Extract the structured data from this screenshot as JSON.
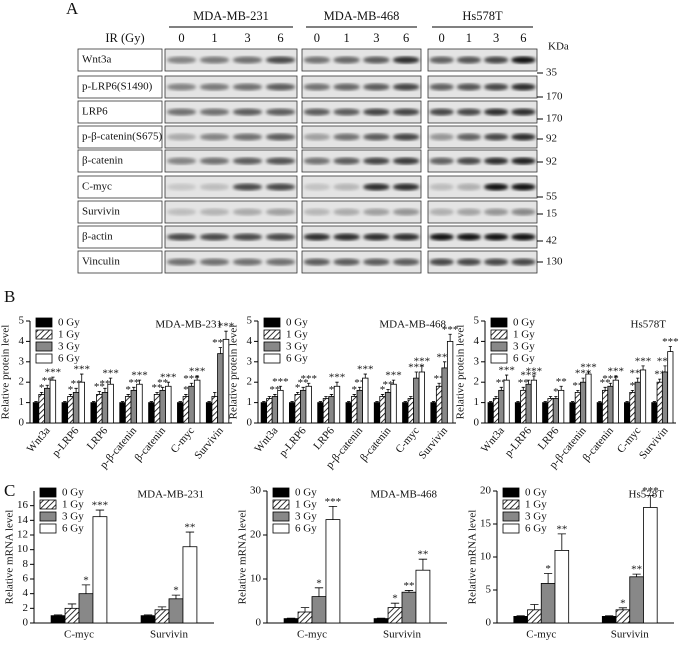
{
  "panel_labels": [
    "A",
    "B",
    "C"
  ],
  "blot": {
    "cell_lines": [
      "MDA-MB-231",
      "MDA-MB-468",
      "Hs578T"
    ],
    "dose_label": "IR (Gy)",
    "doses": [
      "0",
      "1",
      "3",
      "6"
    ],
    "proteins": [
      "Wnt3a",
      "p-LRP6(S1490)",
      "LRP6",
      "p-β-catenin(S675)",
      "β-catenin",
      "C-myc",
      "Survivin",
      "β-actin",
      "Vinculin"
    ],
    "kda_header": "KDa",
    "kda": [
      "35",
      "170",
      "170",
      "92",
      "92",
      "55",
      "15",
      "42",
      "130"
    ]
  },
  "chart_data": [
    {
      "type": "bar",
      "title": "MDA-MB-231",
      "ylabel": "Relative protein level",
      "rotate_labels": true,
      "legend": "upper left",
      "categories": [
        "Wnt3a",
        "p-LRP6",
        "LRP6",
        "p-β-catenin",
        "β-catenin",
        "C-myc",
        "Survivin"
      ],
      "ylim": [
        0,
        5
      ],
      "yticks": [
        0,
        1,
        2,
        3,
        4,
        5
      ],
      "series": [
        {
          "name": "0 Gy",
          "color": "#000000",
          "values": [
            1,
            1,
            1,
            1,
            1,
            1,
            1
          ],
          "errors": [
            0.05,
            0.05,
            0.05,
            0.05,
            0.05,
            0.05,
            0.05
          ],
          "sig": [
            null,
            null,
            null,
            null,
            null,
            null,
            null
          ]
        },
        {
          "name": "1 Gy",
          "color": "#ffffff",
          "hatch": true,
          "values": [
            1.4,
            1.3,
            1.4,
            1.3,
            1.4,
            1.3,
            1.3
          ],
          "errors": [
            0.1,
            0.1,
            0.15,
            0.1,
            0.1,
            0.1,
            0.2
          ],
          "sig": [
            "*",
            "*",
            "**",
            "*",
            "**",
            "*",
            null
          ]
        },
        {
          "name": "3 Gy",
          "color": "#888888",
          "values": [
            1.7,
            1.5,
            1.5,
            1.6,
            1.6,
            1.8,
            3.4
          ],
          "errors": [
            0.15,
            0.2,
            0.2,
            0.15,
            0.15,
            0.15,
            0.3
          ],
          "sig": [
            "**",
            "**",
            "**",
            "**",
            "**",
            "***",
            "***"
          ]
        },
        {
          "name": "6 Gy",
          "color": "#ffffff",
          "values": [
            2.1,
            2.0,
            1.9,
            1.9,
            1.8,
            2.1,
            4.1
          ],
          "errors": [
            0.15,
            0.4,
            0.3,
            0.2,
            0.2,
            0.2,
            0.4
          ],
          "sig": [
            "***",
            "***",
            "***",
            "***",
            "***",
            "***",
            "***"
          ]
        }
      ]
    },
    {
      "type": "bar",
      "title": "MDA-MB-468",
      "ylabel": "Relative protein level",
      "rotate_labels": true,
      "legend": "upper left",
      "categories": [
        "Wnt3a",
        "p-LRP6",
        "LRP6",
        "p-β-catenin",
        "β-catenin",
        "C-myc",
        "Survivin"
      ],
      "ylim": [
        0,
        5
      ],
      "yticks": [
        0,
        1,
        2,
        3,
        4,
        5
      ],
      "series": [
        {
          "name": "0 Gy",
          "color": "#000000",
          "values": [
            1,
            1,
            1,
            1,
            1,
            1,
            1
          ],
          "errors": [
            0.05,
            0.05,
            0.05,
            0.05,
            0.05,
            0.05,
            0.05
          ],
          "sig": [
            null,
            null,
            null,
            null,
            null,
            null,
            null
          ]
        },
        {
          "name": "1 Gy",
          "color": "#ffffff",
          "hatch": true,
          "values": [
            1.2,
            1.4,
            1.2,
            1.3,
            1.3,
            1.2,
            1.8
          ],
          "errors": [
            0.1,
            0.1,
            0.1,
            0.1,
            0.1,
            0.1,
            0.15
          ],
          "sig": [
            null,
            "*",
            null,
            "*",
            "*",
            null,
            "**"
          ]
        },
        {
          "name": "3 Gy",
          "color": "#888888",
          "values": [
            1.3,
            1.6,
            1.3,
            1.6,
            1.5,
            2.2,
            2.7
          ],
          "errors": [
            0.1,
            0.15,
            0.1,
            0.15,
            0.15,
            0.3,
            0.3
          ],
          "sig": [
            "**",
            "**",
            "*",
            "**",
            "**",
            "***",
            "***"
          ]
        },
        {
          "name": "6 Gy",
          "color": "#ffffff",
          "values": [
            1.6,
            1.8,
            1.8,
            2.2,
            1.9,
            2.5,
            4.0
          ],
          "errors": [
            0.2,
            0.15,
            0.2,
            0.2,
            0.2,
            0.3,
            0.35
          ],
          "sig": [
            "***",
            "***",
            "***",
            "***",
            "***",
            "***",
            "***"
          ]
        }
      ]
    },
    {
      "type": "bar",
      "title": "Hs578T",
      "ylabel": "Relative protein level",
      "rotate_labels": true,
      "legend": "upper left",
      "categories": [
        "Wnt3a",
        "p-LRP6",
        "LRP6",
        "p-β-catenin",
        "β-catenin",
        "C-myc",
        "Survivin"
      ],
      "ylim": [
        0,
        5
      ],
      "yticks": [
        0,
        1,
        2,
        3,
        4,
        5
      ],
      "series": [
        {
          "name": "0 Gy",
          "color": "#000000",
          "values": [
            1,
            1,
            1,
            1,
            1,
            1,
            1
          ],
          "errors": [
            0.05,
            0.05,
            0.05,
            0.05,
            0.05,
            0.05,
            0.05
          ],
          "sig": [
            null,
            null,
            null,
            null,
            null,
            null,
            null
          ]
        },
        {
          "name": "1 Gy",
          "color": "#ffffff",
          "hatch": true,
          "values": [
            1.2,
            1.6,
            1.2,
            1.5,
            1.6,
            1.5,
            2.0
          ],
          "errors": [
            0.1,
            0.15,
            0.1,
            0.1,
            0.15,
            0.1,
            0.15
          ],
          "sig": [
            null,
            "**",
            null,
            "**",
            "**",
            "*",
            "**"
          ]
        },
        {
          "name": "3 Gy",
          "color": "#888888",
          "values": [
            1.6,
            1.9,
            1.2,
            2.0,
            1.8,
            2.0,
            2.5
          ],
          "errors": [
            0.15,
            0.2,
            0.1,
            0.2,
            0.15,
            0.2,
            0.3
          ],
          "sig": [
            "**",
            "***",
            "*",
            "***",
            "***",
            "***",
            "***"
          ]
        },
        {
          "name": "6 Gy",
          "color": "#ffffff",
          "values": [
            2.1,
            2.1,
            1.6,
            2.4,
            2.1,
            2.6,
            3.5
          ],
          "errors": [
            0.25,
            0.2,
            0.2,
            0.1,
            0.2,
            0.2,
            0.25
          ],
          "sig": [
            "***",
            "***",
            "**",
            "***",
            "***",
            "***",
            "***"
          ]
        }
      ]
    },
    {
      "type": "bar",
      "title": "MDA-MB-231",
      "ylabel": "Relative mRNA level",
      "rotate_labels": false,
      "legend": "upper left",
      "categories": [
        "C-myc",
        "Survivin"
      ],
      "ylim": [
        0,
        18
      ],
      "yticks": [
        0,
        2,
        4,
        6,
        8,
        10,
        12,
        14,
        16
      ],
      "series": [
        {
          "name": "0 Gy",
          "color": "#000000",
          "values": [
            1,
            1
          ],
          "errors": [
            0.1,
            0.1
          ],
          "sig": [
            null,
            null
          ]
        },
        {
          "name": "1 Gy",
          "color": "#ffffff",
          "hatch": true,
          "values": [
            2,
            1.8
          ],
          "errors": [
            0.6,
            0.4
          ],
          "sig": [
            null,
            null
          ]
        },
        {
          "name": "3 Gy",
          "color": "#888888",
          "values": [
            4,
            3.3
          ],
          "errors": [
            1.2,
            0.5
          ],
          "sig": [
            "*",
            "*"
          ]
        },
        {
          "name": "6 Gy",
          "color": "#ffffff",
          "values": [
            14.5,
            10.4
          ],
          "errors": [
            0.9,
            2
          ],
          "sig": [
            "***",
            "**"
          ]
        }
      ]
    },
    {
      "type": "bar",
      "title": "MDA-MB-468",
      "ylabel": "Relative mRNA level",
      "rotate_labels": false,
      "legend": "upper left",
      "categories": [
        "C-myc",
        "Survivin"
      ],
      "ylim": [
        0,
        30
      ],
      "yticks": [
        0,
        10,
        20,
        30
      ],
      "series": [
        {
          "name": "0 Gy",
          "color": "#000000",
          "values": [
            1,
            1
          ],
          "errors": [
            0.1,
            0.1
          ],
          "sig": [
            null,
            null
          ]
        },
        {
          "name": "1 Gy",
          "color": "#ffffff",
          "hatch": true,
          "values": [
            2.5,
            3.5
          ],
          "errors": [
            1,
            1
          ],
          "sig": [
            null,
            "*"
          ]
        },
        {
          "name": "3 Gy",
          "color": "#888888",
          "values": [
            6,
            7
          ],
          "errors": [
            2,
            0.4
          ],
          "sig": [
            "*",
            "**"
          ]
        },
        {
          "name": "6 Gy",
          "color": "#ffffff",
          "values": [
            23.5,
            12
          ],
          "errors": [
            3,
            2.5
          ],
          "sig": [
            "***",
            "**"
          ]
        }
      ]
    },
    {
      "type": "bar",
      "title": "Hs578T",
      "ylabel": "Relative mRNA level",
      "rotate_labels": false,
      "legend": "upper left",
      "categories": [
        "C-myc",
        "Survivin"
      ],
      "ylim": [
        0,
        20
      ],
      "yticks": [
        0,
        5,
        10,
        15,
        20
      ],
      "series": [
        {
          "name": "0 Gy",
          "color": "#000000",
          "values": [
            1,
            1
          ],
          "errors": [
            0.1,
            0.1
          ],
          "sig": [
            null,
            null
          ]
        },
        {
          "name": "1 Gy",
          "color": "#ffffff",
          "hatch": true,
          "values": [
            2,
            2
          ],
          "errors": [
            0.8,
            0.3
          ],
          "sig": [
            null,
            "*"
          ]
        },
        {
          "name": "3 Gy",
          "color": "#888888",
          "values": [
            6,
            7
          ],
          "errors": [
            1.5,
            0.4
          ],
          "sig": [
            "*",
            "**"
          ]
        },
        {
          "name": "6 Gy",
          "color": "#ffffff",
          "values": [
            11,
            17.5
          ],
          "errors": [
            2.5,
            1.8
          ],
          "sig": [
            "**",
            "***"
          ]
        }
      ]
    }
  ]
}
